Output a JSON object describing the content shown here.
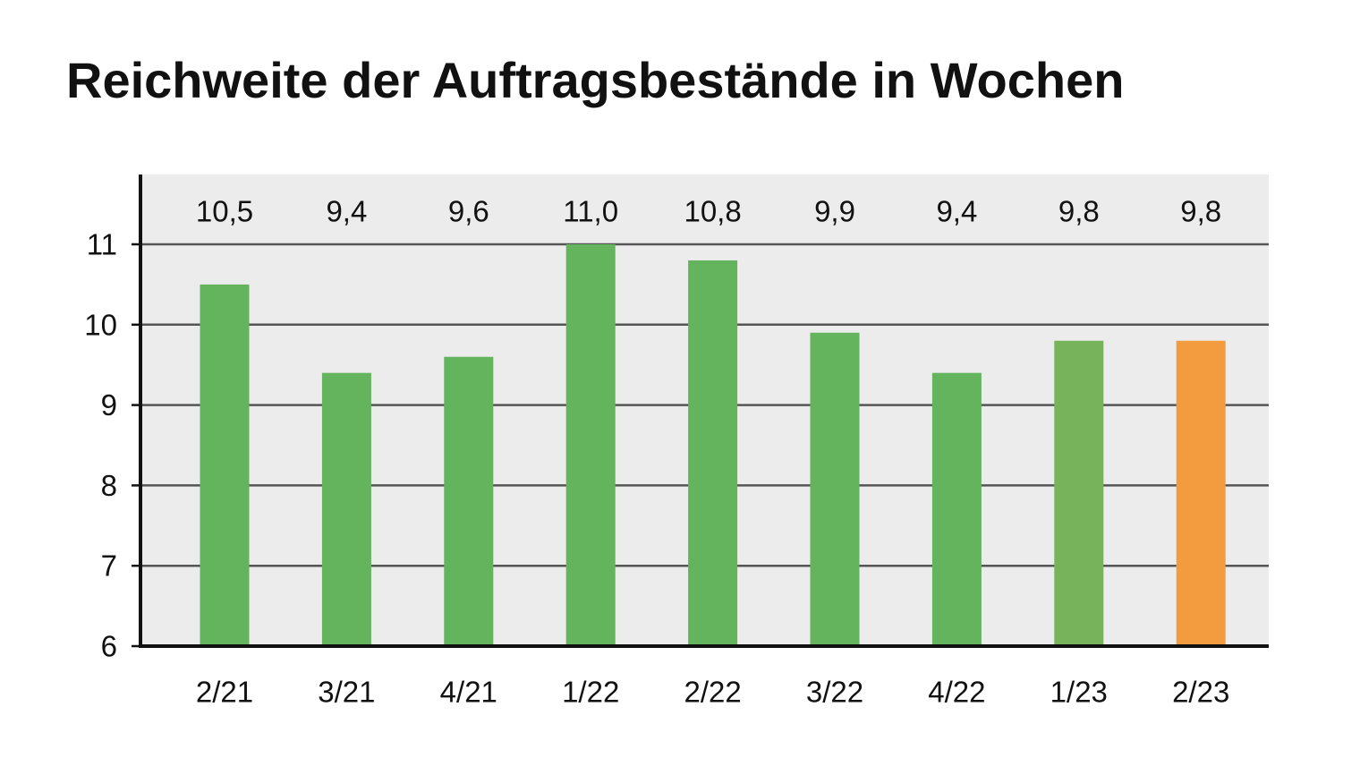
{
  "chart_data": {
    "type": "bar",
    "title": "Reichweite der Auftragsbestände in Wochen",
    "xlabel": "",
    "ylabel": "",
    "categories": [
      "2/21",
      "3/21",
      "4/21",
      "1/22",
      "2/22",
      "3/22",
      "4/22",
      "1/23",
      "2/23"
    ],
    "values": [
      10.5,
      9.4,
      9.6,
      11.0,
      10.8,
      9.9,
      9.4,
      9.8,
      9.8
    ],
    "value_labels": [
      "10,5",
      "9,4",
      "9,6",
      "11,0",
      "10,8",
      "9,9",
      "9,4",
      "9,8",
      "9,8"
    ],
    "bar_colors": [
      "#63b45d",
      "#63b45d",
      "#63b45d",
      "#63b45d",
      "#63b45d",
      "#63b45d",
      "#63b45d",
      "#76b35a",
      "#f29b3f"
    ],
    "ylim": [
      6,
      11
    ],
    "yticks": [
      "6",
      "7",
      "8",
      "9",
      "10",
      "11"
    ],
    "grid": true,
    "legend": "none",
    "colors": {
      "plot_background": "#ececec",
      "gridline": "#555555",
      "axis": "#111111",
      "text": "#111111"
    }
  }
}
